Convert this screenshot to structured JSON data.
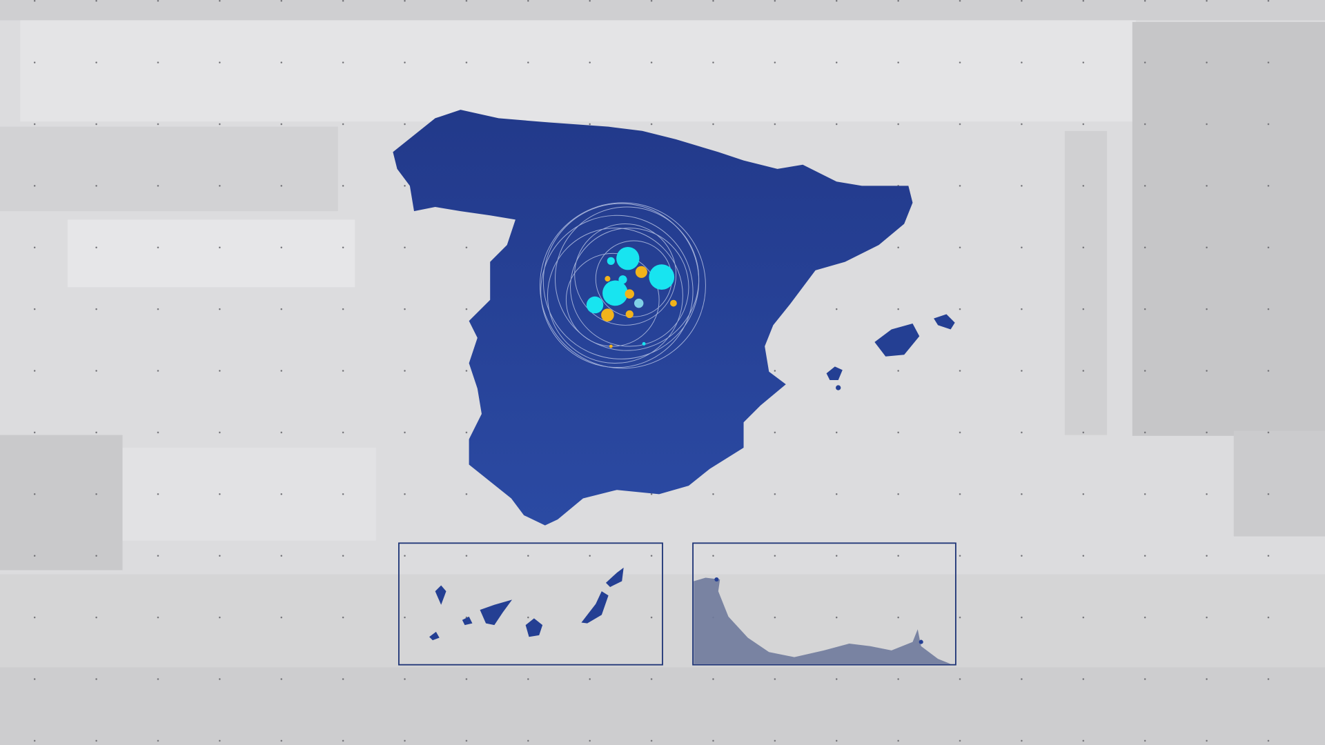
{
  "colors": {
    "background": "#dcdcde",
    "panel_light": "#e6e6e8",
    "panel_dark": "#c4c4c6",
    "land": "#243f93",
    "land_light": "#2d4ba3",
    "inset_border": "#1f3577",
    "inset_land": "#243f93",
    "inset_coast": "#6f7a9c",
    "marker_cyan": "#18e4f0",
    "marker_lightblue": "#7fd0e6",
    "marker_orange": "#f2b31b",
    "ring": "#c8d2ee"
  },
  "map": {
    "subject": "spain-mainland-balearic-canary-ceuta-melilla",
    "markers": [
      {
        "color": "cyan",
        "size": 13.6,
        "lon_lat_hint": "madrid-north"
      },
      {
        "color": "cyan",
        "size": 15
      },
      {
        "color": "cyan",
        "size": 15
      },
      {
        "color": "cyan",
        "size": 10
      },
      {
        "color": "cyan",
        "size": 4.6
      },
      {
        "color": "cyan",
        "size": 5
      },
      {
        "color": "lightblue",
        "size": 5.5
      },
      {
        "color": "orange",
        "size": 7
      },
      {
        "color": "orange",
        "size": 3.3
      },
      {
        "color": "orange",
        "size": 5.5
      },
      {
        "color": "orange",
        "size": 7.6
      },
      {
        "color": "orange",
        "size": 4.6
      },
      {
        "color": "orange",
        "size": 4
      },
      {
        "color": "orange",
        "size": 2
      },
      {
        "color": "cyan",
        "size": 2
      }
    ]
  }
}
